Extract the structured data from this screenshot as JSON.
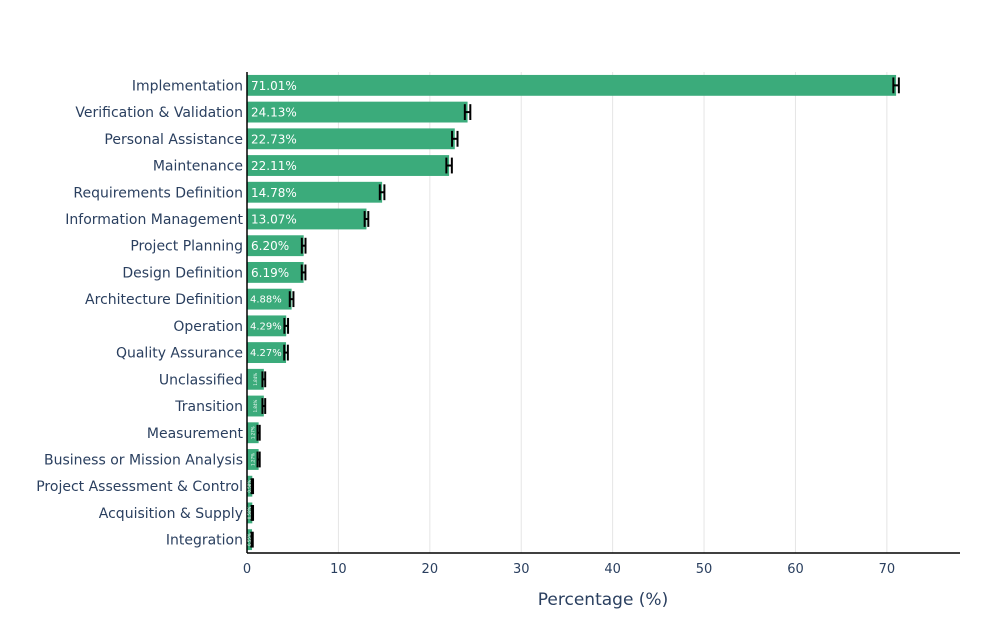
{
  "chart_data": {
    "type": "bar",
    "orientation": "horizontal",
    "xlabel": "Percentage (%)",
    "ylabel": "",
    "xlim": [
      0,
      78
    ],
    "xticks": [
      0,
      10,
      20,
      30,
      40,
      50,
      60,
      70
    ],
    "grid": true,
    "bar_color": "#3bab7b",
    "error_bar_color": "#000000",
    "categories": [
      "Implementation",
      "Verification & Validation",
      "Personal Assistance",
      "Maintenance",
      "Requirements Definition",
      "Information Management",
      "Project Planning",
      "Design Definition",
      "Architecture Definition",
      "Operation",
      "Quality Assurance",
      "Unclassified",
      "Transition",
      "Measurement",
      "Business or Mission Analysis",
      "Project Assessment & Control",
      "Acquisition & Supply",
      "Integration"
    ],
    "values": [
      71.01,
      24.13,
      22.73,
      22.11,
      14.78,
      13.07,
      6.2,
      6.19,
      4.88,
      4.29,
      4.27,
      1.84,
      1.84,
      1.27,
      1.27,
      0.58,
      0.58,
      0.55
    ],
    "errors": [
      0.3,
      0.3,
      0.3,
      0.3,
      0.25,
      0.2,
      0.2,
      0.2,
      0.2,
      0.2,
      0.2,
      0.15,
      0.15,
      0.12,
      0.12,
      0.08,
      0.08,
      0.08
    ],
    "data_labels": [
      "71.01%",
      "24.13%",
      "22.73%",
      "22.11%",
      "14.78%",
      "13.07%",
      "6.20%",
      "6.19%",
      "4.88%",
      "4.29%",
      "4.27%",
      "1.84%",
      "1.84%",
      "1.27%",
      "1.27%",
      "0.58%",
      "0.58%",
      "0.55%"
    ]
  }
}
